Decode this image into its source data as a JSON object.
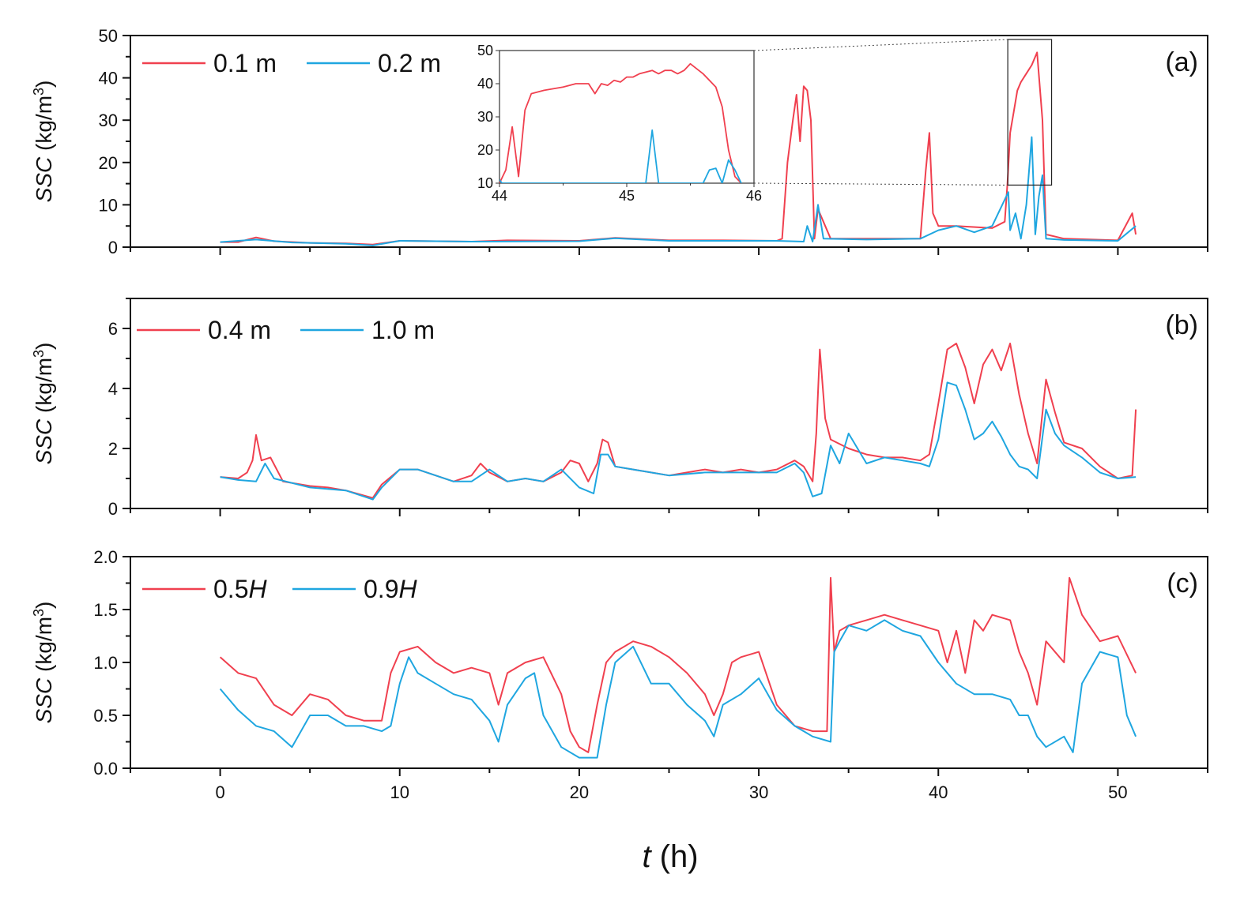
{
  "figure": {
    "xlabel_var": "t",
    "xlabel_unit": " (h)"
  },
  "chart_data": [
    {
      "type": "line",
      "panel_label": "(a)",
      "ylabel_var": "SSC",
      "ylabel_unit": " (kg/m",
      "ylabel_exp": "3",
      "ylabel_close": ")",
      "xlim": [
        -5,
        55
      ],
      "ylim": [
        0,
        50
      ],
      "xticks": [
        0,
        10,
        20,
        30,
        40,
        50
      ],
      "yticks": [
        0,
        10,
        20,
        30,
        40,
        50
      ],
      "series": [
        {
          "name": "0.1 m",
          "color": "#f0404f",
          "x": [
            0,
            1,
            2,
            3,
            5,
            7,
            8.5,
            10,
            14,
            16,
            20,
            22,
            25,
            28,
            31,
            31.3,
            31.6,
            31.9,
            32.1,
            32.3,
            32.5,
            32.7,
            32.9,
            33.1,
            33.3,
            34,
            36,
            39,
            39.3,
            39.5,
            39.7,
            40,
            41,
            43,
            43.7,
            43.85,
            44,
            44.2,
            44.4,
            44.6,
            44.9,
            45.2,
            45.5,
            45.8,
            46,
            47,
            50,
            50.8,
            51
          ],
          "values": [
            1.2,
            1.2,
            2.3,
            1.4,
            1,
            0.9,
            0.6,
            1.5,
            1.3,
            1.6,
            1.5,
            2.2,
            1.6,
            1.6,
            1.5,
            2.0,
            20,
            30,
            36,
            25,
            38,
            37,
            30,
            2,
            9,
            2,
            2,
            2,
            18,
            27,
            8,
            5,
            5,
            4.5,
            6,
            15,
            27,
            32,
            37,
            39,
            41,
            43,
            46,
            30,
            3,
            2,
            1.6,
            8,
            3
          ],
          "legend_label": "0.1 m"
        },
        {
          "name": "0.2 m",
          "color": "#1fa6e0",
          "x": [
            0,
            2,
            4,
            7,
            8.5,
            10,
            14,
            20,
            22,
            25,
            31,
            32.5,
            32.7,
            33,
            33.3,
            33.6,
            36,
            39,
            40,
            41,
            42,
            43,
            43.9,
            44,
            44.3,
            44.6,
            44.9,
            45.2,
            45.4,
            45.6,
            45.8,
            46,
            47,
            50,
            51
          ],
          "values": [
            1.2,
            1.8,
            1.1,
            0.8,
            0.4,
            1.5,
            1.3,
            1.4,
            2.1,
            1.5,
            1.5,
            1.3,
            5,
            1.3,
            10,
            2,
            1.8,
            2,
            4,
            5,
            3.5,
            5,
            13,
            4,
            8,
            2,
            10,
            26,
            3,
            12,
            17,
            2,
            1.7,
            1.5,
            5
          ]
        }
      ],
      "inset": {
        "xlim": [
          44,
          46
        ],
        "ylim": [
          10,
          50
        ],
        "xticks": [
          44,
          45,
          46
        ],
        "yticks": [
          10,
          20,
          30,
          40,
          50
        ],
        "series": [
          {
            "name": "0.1 m",
            "color": "#f0404f",
            "x": [
              44,
              44.05,
              44.1,
              44.15,
              44.2,
              44.25,
              44.35,
              44.5,
              44.6,
              44.7,
              44.75,
              44.8,
              44.85,
              44.9,
              44.95,
              45,
              45.05,
              45.1,
              45.2,
              45.25,
              45.3,
              45.35,
              45.4,
              45.45,
              45.5,
              45.6,
              45.7,
              45.75,
              45.8,
              45.85,
              45.9
            ],
            "values": [
              10,
              14,
              27,
              12,
              32,
              37,
              38,
              39,
              40,
              40,
              37,
              40,
              39.5,
              41,
              40.5,
              42,
              42,
              43,
              44,
              43,
              44,
              44,
              43,
              44,
              46,
              43,
              39,
              33,
              20,
              12,
              10
            ]
          },
          {
            "name": "0.2 m",
            "color": "#1fa6e0",
            "x": [
              44,
              44.02,
              45.15,
              45.2,
              45.25,
              45.6,
              45.65,
              45.7,
              45.75,
              45.8,
              45.85,
              45.9
            ],
            "values": [
              11,
              10,
              10,
              26,
              10,
              10,
              14,
              14.5,
              10,
              17,
              14,
              10
            ]
          }
        ]
      },
      "legend": [
        "0.1 m",
        "0.2 m"
      ]
    },
    {
      "type": "line",
      "panel_label": "(b)",
      "ylabel_var": "SSC",
      "ylabel_unit": " (kg/m",
      "ylabel_exp": "3",
      "ylabel_close": ")",
      "xlim": [
        -5,
        55
      ],
      "ylim": [
        0,
        7
      ],
      "xticks": [
        0,
        10,
        20,
        30,
        40,
        50
      ],
      "yticks": [
        0,
        2,
        4,
        6
      ],
      "series": [
        {
          "name": "0.4 m",
          "color": "#f0404f",
          "x": [
            0,
            1,
            1.5,
            1.8,
            2.0,
            2.3,
            2.8,
            3.5,
            5,
            6,
            7,
            8.5,
            9,
            10,
            11,
            12,
            13,
            14,
            14.5,
            15,
            16,
            17,
            18,
            19,
            19.5,
            20,
            20.5,
            21,
            21.3,
            21.6,
            22,
            23,
            24,
            25,
            26,
            27,
            28,
            29,
            30,
            31,
            32,
            32.5,
            33,
            33.2,
            33.4,
            33.7,
            34,
            35,
            36,
            37,
            38,
            39,
            39.5,
            40,
            40.5,
            41,
            41.5,
            42,
            42.5,
            43,
            43.5,
            44,
            44.5,
            45,
            45.5,
            46,
            46.5,
            47,
            48,
            49,
            50,
            50.8,
            51
          ],
          "values": [
            1.05,
            1.0,
            1.2,
            1.6,
            2.45,
            1.6,
            1.7,
            0.9,
            0.75,
            0.7,
            0.6,
            0.35,
            0.8,
            1.3,
            1.3,
            1.1,
            0.9,
            1.1,
            1.5,
            1.2,
            0.9,
            1.0,
            0.9,
            1.2,
            1.6,
            1.5,
            0.9,
            1.5,
            2.3,
            2.2,
            1.4,
            1.3,
            1.2,
            1.1,
            1.2,
            1.3,
            1.2,
            1.3,
            1.2,
            1.3,
            1.6,
            1.4,
            0.9,
            2.5,
            5.3,
            3.0,
            2.3,
            2.0,
            1.8,
            1.7,
            1.7,
            1.6,
            1.8,
            3.5,
            5.3,
            5.5,
            4.7,
            3.5,
            4.8,
            5.3,
            4.6,
            5.5,
            3.8,
            2.5,
            1.5,
            4.3,
            3.2,
            2.2,
            2.0,
            1.4,
            1.0,
            1.1,
            3.3
          ]
        },
        {
          "name": "1.0 m",
          "color": "#1fa6e0",
          "x": [
            0,
            1,
            2,
            2.5,
            3,
            5,
            7,
            8.5,
            9,
            10,
            11,
            12,
            13,
            14,
            15,
            16,
            17,
            18,
            19,
            20,
            20.8,
            21.2,
            21.6,
            22,
            23,
            25,
            27,
            29,
            31,
            32,
            32.5,
            33,
            33.5,
            34,
            34.5,
            35,
            36,
            37,
            38,
            39,
            39.5,
            40,
            40.5,
            41,
            41.5,
            42,
            42.5,
            43,
            43.5,
            44,
            44.5,
            45,
            45.5,
            46,
            46.5,
            47,
            48,
            49,
            50,
            51
          ],
          "values": [
            1.05,
            0.95,
            0.9,
            1.5,
            1.0,
            0.7,
            0.6,
            0.3,
            0.7,
            1.3,
            1.3,
            1.1,
            0.9,
            0.9,
            1.3,
            0.9,
            1.0,
            0.9,
            1.3,
            0.7,
            0.5,
            1.8,
            1.8,
            1.4,
            1.3,
            1.1,
            1.2,
            1.2,
            1.2,
            1.5,
            1.2,
            0.4,
            0.5,
            2.1,
            1.5,
            2.5,
            1.5,
            1.7,
            1.6,
            1.5,
            1.4,
            2.3,
            4.2,
            4.1,
            3.3,
            2.3,
            2.5,
            2.9,
            2.4,
            1.8,
            1.4,
            1.3,
            1.0,
            3.3,
            2.5,
            2.1,
            1.7,
            1.2,
            1.0,
            1.05
          ]
        }
      ],
      "legend": [
        "0.4 m",
        "1.0 m"
      ]
    },
    {
      "type": "line",
      "panel_label": "(c)",
      "ylabel_var": "SSC",
      "ylabel_unit": " (kg/m",
      "ylabel_exp": "3",
      "ylabel_close": ")",
      "xlim": [
        -5,
        55
      ],
      "ylim": [
        0,
        2
      ],
      "xticks": [
        0,
        10,
        20,
        30,
        40,
        50
      ],
      "yticks": [
        0,
        0.5,
        1,
        1.5,
        2
      ],
      "ytick_labels": [
        "0.0",
        "0.5",
        "1.0",
        "1.5",
        "2.0"
      ],
      "series": [
        {
          "name": "0.5H",
          "color": "#f0404f",
          "x": [
            0,
            1,
            2,
            3,
            4,
            5,
            6,
            7,
            8,
            9,
            9.5,
            10,
            11,
            12,
            13,
            14,
            15,
            15.5,
            16,
            17,
            18,
            19,
            19.5,
            20,
            20.5,
            21,
            21.5,
            22,
            23,
            24,
            25,
            26,
            27,
            27.5,
            28,
            28.5,
            29,
            30,
            31,
            32,
            33,
            33.8,
            34,
            34.2,
            34.5,
            35,
            36,
            37,
            38,
            39,
            40,
            40.5,
            41,
            41.5,
            42,
            42.5,
            43,
            44,
            44.5,
            45,
            45.5,
            46,
            47,
            47.3,
            48,
            49,
            50,
            51
          ],
          "values": [
            1.05,
            0.9,
            0.85,
            0.6,
            0.5,
            0.7,
            0.65,
            0.5,
            0.45,
            0.45,
            0.9,
            1.1,
            1.15,
            1.0,
            0.9,
            0.95,
            0.9,
            0.6,
            0.9,
            1.0,
            1.05,
            0.7,
            0.35,
            0.2,
            0.15,
            0.6,
            1.0,
            1.1,
            1.2,
            1.15,
            1.05,
            0.9,
            0.7,
            0.5,
            0.7,
            1.0,
            1.05,
            1.1,
            0.6,
            0.4,
            0.35,
            0.35,
            1.8,
            1.1,
            1.3,
            1.35,
            1.4,
            1.45,
            1.4,
            1.35,
            1.3,
            1.0,
            1.3,
            0.9,
            1.4,
            1.3,
            1.45,
            1.4,
            1.1,
            0.9,
            0.6,
            1.2,
            1.0,
            1.8,
            1.45,
            1.2,
            1.25,
            0.9
          ]
        },
        {
          "name": "0.9H",
          "color": "#1fa6e0",
          "x": [
            0,
            1,
            2,
            3,
            4,
            5,
            6,
            7,
            8,
            9,
            9.5,
            10,
            10.5,
            11,
            12,
            13,
            14,
            15,
            15.5,
            16,
            17,
            17.5,
            18,
            19,
            20,
            20.5,
            21,
            21.5,
            22,
            23,
            24,
            25,
            26,
            27,
            27.5,
            28,
            29,
            30,
            31,
            32,
            33,
            34,
            34.2,
            34.5,
            35,
            36,
            37,
            38,
            39,
            40,
            41,
            42,
            43,
            44,
            44.5,
            45,
            45.5,
            46,
            47,
            47.5,
            48,
            49,
            50,
            50.5,
            51
          ],
          "values": [
            0.75,
            0.55,
            0.4,
            0.35,
            0.2,
            0.5,
            0.5,
            0.4,
            0.4,
            0.35,
            0.4,
            0.8,
            1.05,
            0.9,
            0.8,
            0.7,
            0.65,
            0.45,
            0.25,
            0.6,
            0.85,
            0.9,
            0.5,
            0.2,
            0.1,
            0.1,
            0.1,
            0.6,
            1.0,
            1.15,
            0.8,
            0.8,
            0.6,
            0.45,
            0.3,
            0.6,
            0.7,
            0.85,
            0.55,
            0.4,
            0.3,
            0.25,
            1.1,
            1.2,
            1.35,
            1.3,
            1.4,
            1.3,
            1.25,
            1.0,
            0.8,
            0.7,
            0.7,
            0.65,
            0.5,
            0.5,
            0.3,
            0.2,
            0.3,
            0.15,
            0.8,
            1.1,
            1.05,
            0.5,
            0.3
          ]
        }
      ],
      "legend": [
        "0.5H",
        "0.9H"
      ]
    }
  ]
}
